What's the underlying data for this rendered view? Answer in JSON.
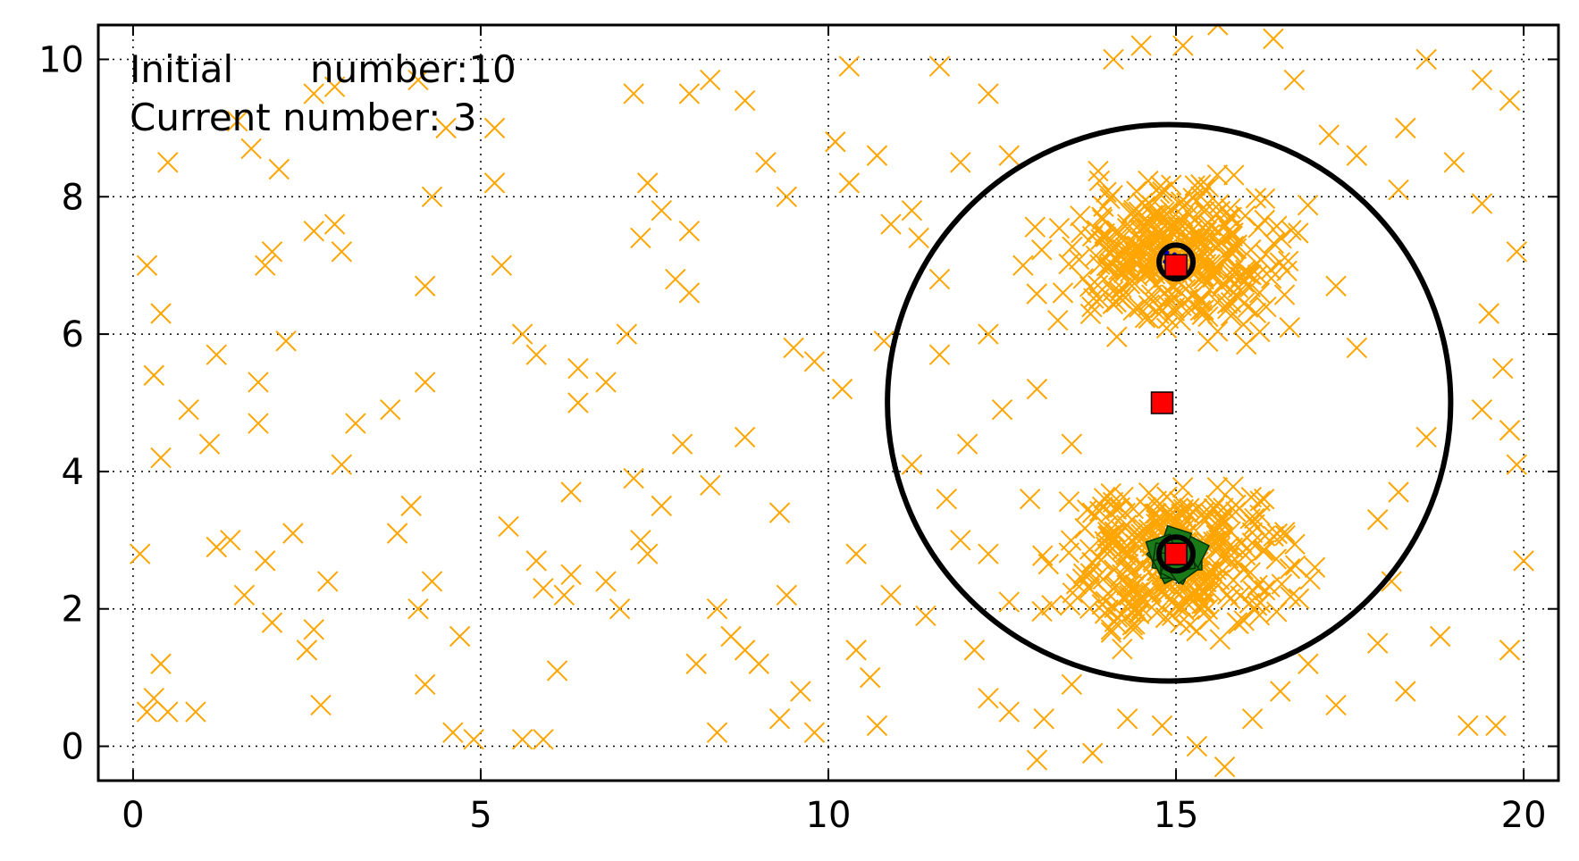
{
  "chart_data": {
    "type": "scatter",
    "title": "",
    "xlabel": "",
    "ylabel": "",
    "xlim": [
      -0.5,
      20.5
    ],
    "ylim": [
      -0.5,
      10.5
    ],
    "x_ticks": [
      0,
      5,
      10,
      15,
      20
    ],
    "y_ticks": [
      0,
      2,
      4,
      6,
      8,
      10
    ],
    "grid": true,
    "annotations": {
      "initial_label": "Initial",
      "initial_value": "number:10",
      "current": "Current number: 3"
    },
    "colors": {
      "cross": "#FFA500",
      "big_circle": "#000000",
      "square": "#FF0000",
      "cluster_center": "#006400",
      "dots": "#0000CC"
    },
    "background_crosses": [
      [
        0.1,
        2.8
      ],
      [
        0.2,
        0.5
      ],
      [
        0.3,
        0.7
      ],
      [
        0.4,
        1.2
      ],
      [
        0.5,
        0.5
      ],
      [
        0.9,
        0.5
      ],
      [
        0.2,
        7.0
      ],
      [
        0.4,
        6.3
      ],
      [
        0.5,
        8.5
      ],
      [
        0.3,
        5.4
      ],
      [
        0.4,
        4.2
      ],
      [
        0.8,
        4.9
      ],
      [
        1.1,
        4.4
      ],
      [
        1.2,
        5.7
      ],
      [
        1.2,
        2.9
      ],
      [
        1.4,
        3.0
      ],
      [
        1.6,
        2.2
      ],
      [
        1.9,
        2.7
      ],
      [
        2.0,
        1.8
      ],
      [
        2.3,
        3.1
      ],
      [
        2.5,
        1.4
      ],
      [
        2.6,
        1.7
      ],
      [
        2.7,
        0.6
      ],
      [
        2.8,
        2.4
      ],
      [
        1.8,
        4.7
      ],
      [
        1.8,
        5.3
      ],
      [
        2.2,
        5.9
      ],
      [
        1.9,
        7.0
      ],
      [
        2.0,
        7.2
      ],
      [
        2.1,
        8.4
      ],
      [
        1.7,
        8.7
      ],
      [
        1.5,
        9.1
      ],
      [
        2.6,
        9.5
      ],
      [
        2.9,
        9.6
      ],
      [
        2.6,
        7.5
      ],
      [
        2.9,
        7.6
      ],
      [
        3.0,
        7.2
      ],
      [
        3.2,
        4.7
      ],
      [
        3.0,
        4.1
      ],
      [
        3.7,
        4.9
      ],
      [
        3.8,
        3.1
      ],
      [
        4.0,
        3.5
      ],
      [
        4.1,
        2.0
      ],
      [
        4.3,
        2.4
      ],
      [
        4.2,
        0.9
      ],
      [
        4.6,
        0.2
      ],
      [
        4.9,
        0.1
      ],
      [
        4.7,
        1.6
      ],
      [
        4.2,
        5.3
      ],
      [
        4.2,
        6.7
      ],
      [
        4.3,
        8.0
      ],
      [
        4.5,
        9.0
      ],
      [
        4.1,
        9.7
      ],
      [
        5.2,
        9.0
      ],
      [
        5.2,
        8.2
      ],
      [
        5.3,
        7.0
      ],
      [
        5.6,
        6.0
      ],
      [
        5.8,
        5.7
      ],
      [
        5.4,
        3.2
      ],
      [
        5.8,
        2.7
      ],
      [
        5.9,
        2.3
      ],
      [
        5.6,
        0.1
      ],
      [
        5.9,
        0.1
      ],
      [
        6.1,
        1.1
      ],
      [
        6.2,
        2.2
      ],
      [
        6.3,
        2.5
      ],
      [
        6.3,
        3.7
      ],
      [
        6.4,
        5.0
      ],
      [
        6.4,
        5.5
      ],
      [
        6.8,
        5.3
      ],
      [
        6.8,
        2.4
      ],
      [
        7.0,
        2.0
      ],
      [
        7.3,
        3.0
      ],
      [
        7.4,
        2.8
      ],
      [
        7.6,
        3.5
      ],
      [
        7.2,
        3.9
      ],
      [
        7.1,
        6.0
      ],
      [
        7.3,
        7.4
      ],
      [
        7.6,
        7.8
      ],
      [
        7.4,
        8.2
      ],
      [
        7.2,
        9.5
      ],
      [
        8.0,
        9.5
      ],
      [
        8.3,
        9.7
      ],
      [
        8.0,
        7.5
      ],
      [
        8.0,
        6.6
      ],
      [
        7.8,
        6.8
      ],
      [
        7.9,
        4.4
      ],
      [
        8.3,
        3.8
      ],
      [
        8.4,
        2.0
      ],
      [
        8.1,
        1.2
      ],
      [
        8.6,
        1.6
      ],
      [
        8.4,
        0.2
      ],
      [
        8.8,
        1.4
      ],
      [
        9.0,
        1.2
      ],
      [
        8.8,
        4.5
      ],
      [
        9.3,
        3.4
      ],
      [
        9.4,
        2.2
      ],
      [
        9.6,
        0.8
      ],
      [
        9.3,
        0.4
      ],
      [
        9.8,
        0.2
      ],
      [
        9.5,
        5.8
      ],
      [
        10.2,
        5.2
      ],
      [
        9.8,
        5.6
      ],
      [
        9.1,
        8.5
      ],
      [
        9.4,
        8.0
      ],
      [
        8.8,
        9.4
      ],
      [
        10.3,
        9.9
      ],
      [
        10.1,
        8.8
      ],
      [
        10.3,
        8.2
      ],
      [
        10.7,
        8.6
      ],
      [
        10.9,
        7.6
      ],
      [
        11.2,
        7.8
      ],
      [
        10.8,
        5.9
      ],
      [
        10.4,
        2.8
      ],
      [
        10.4,
        1.4
      ],
      [
        10.6,
        1.0
      ],
      [
        10.7,
        0.3
      ],
      [
        10.9,
        2.2
      ],
      [
        11.2,
        4.1
      ],
      [
        11.6,
        5.7
      ],
      [
        11.6,
        6.8
      ],
      [
        11.9,
        8.5
      ],
      [
        11.6,
        9.9
      ],
      [
        12.3,
        9.5
      ],
      [
        12.6,
        8.6
      ],
      [
        12.3,
        6.0
      ],
      [
        12.5,
        4.9
      ],
      [
        11.9,
        3.0
      ],
      [
        12.3,
        2.8
      ],
      [
        12.1,
        1.4
      ],
      [
        12.3,
        0.7
      ],
      [
        12.6,
        0.5
      ],
      [
        13.1,
        0.4
      ],
      [
        13.0,
        -0.2
      ],
      [
        13.5,
        0.9
      ],
      [
        13.8,
        -0.1
      ],
      [
        14.3,
        0.4
      ],
      [
        14.1,
        10.0
      ],
      [
        14.5,
        10.2
      ],
      [
        15.1,
        10.2
      ],
      [
        15.6,
        10.5
      ],
      [
        16.4,
        10.3
      ],
      [
        16.7,
        9.7
      ],
      [
        17.2,
        8.9
      ],
      [
        17.6,
        8.6
      ],
      [
        18.3,
        9.0
      ],
      [
        18.6,
        10.0
      ],
      [
        19.4,
        9.7
      ],
      [
        19.8,
        9.4
      ],
      [
        19.0,
        8.5
      ],
      [
        19.4,
        7.9
      ],
      [
        19.9,
        7.2
      ],
      [
        19.5,
        6.3
      ],
      [
        19.7,
        5.5
      ],
      [
        19.4,
        4.9
      ],
      [
        19.8,
        4.6
      ],
      [
        19.9,
        4.1
      ],
      [
        20.0,
        2.7
      ],
      [
        19.8,
        1.4
      ],
      [
        19.6,
        0.3
      ],
      [
        19.2,
        0.3
      ],
      [
        18.8,
        1.6
      ],
      [
        18.3,
        0.8
      ],
      [
        18.1,
        2.4
      ],
      [
        17.9,
        3.3
      ],
      [
        18.2,
        3.7
      ],
      [
        18.6,
        4.5
      ],
      [
        17.6,
        5.8
      ],
      [
        17.3,
        6.7
      ],
      [
        18.2,
        8.1
      ],
      [
        17.9,
        1.5
      ],
      [
        17.3,
        0.6
      ],
      [
        16.9,
        1.2
      ],
      [
        16.5,
        0.8
      ],
      [
        16.1,
        0.4
      ],
      [
        15.7,
        -0.3
      ],
      [
        15.3,
        0.0
      ],
      [
        14.8,
        0.3
      ],
      [
        13.0,
        5.2
      ],
      [
        13.3,
        6.2
      ],
      [
        12.8,
        7.0
      ],
      [
        13.5,
        4.4
      ],
      [
        12.9,
        3.6
      ],
      [
        12.6,
        2.1
      ],
      [
        11.4,
        1.9
      ],
      [
        11.7,
        3.6
      ],
      [
        12.0,
        4.4
      ],
      [
        11.3,
        7.4
      ]
    ],
    "cluster_crosses": {
      "top_center": [
        15.0,
        7.1
      ],
      "top_spread": [
        1.4,
        0.9
      ],
      "bottom_center": [
        15.0,
        2.7
      ],
      "bottom_spread": [
        1.4,
        1.0
      ],
      "count_each": 340
    },
    "big_circle": {
      "center": [
        14.9,
        5.0
      ],
      "radius": 4.05
    },
    "red_squares": [
      [
        15.0,
        7.0
      ],
      [
        14.8,
        5.0
      ],
      [
        15.0,
        2.8
      ]
    ],
    "ring_markers": [
      [
        15.0,
        7.05
      ],
      [
        15.0,
        2.8
      ]
    ],
    "green_cluster": {
      "center": [
        15.0,
        2.75
      ],
      "radius": 0.28
    }
  }
}
